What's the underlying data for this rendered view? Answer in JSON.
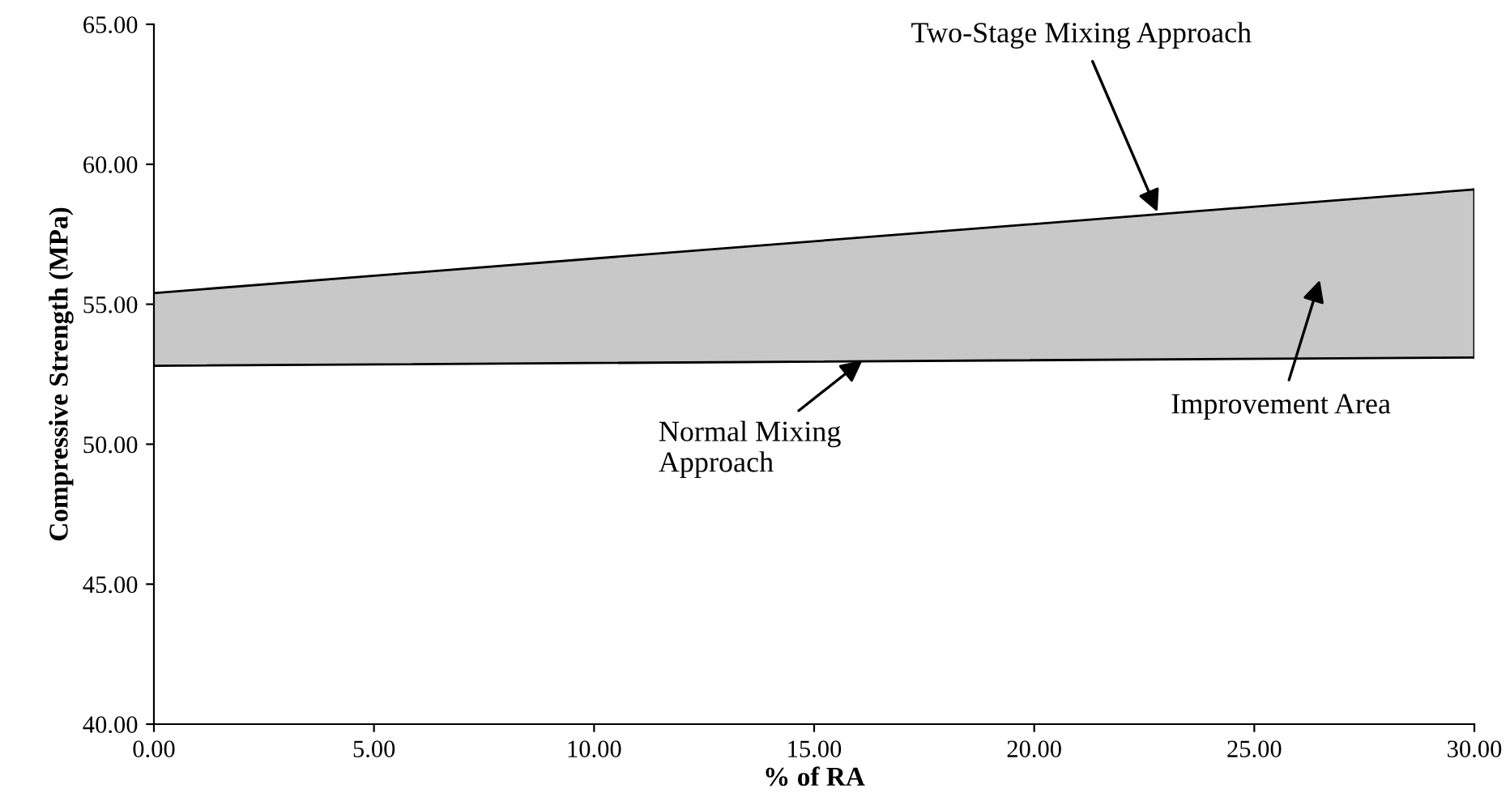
{
  "chart_data": {
    "type": "area",
    "xlabel": "% of RA",
    "ylabel": "Compressive Strength (MPa)",
    "x": [
      0,
      30
    ],
    "series": [
      {
        "type": "line",
        "color": "#000000",
        "values": [
          52.8,
          53.1
        ]
      },
      {
        "color": "#c8c8c8",
        "values": [
          55.4,
          59.1
        ]
      }
    ],
    "xlim": [
      0,
      30
    ],
    "ylim": [
      40,
      65
    ],
    "xticks": [
      {
        "value": 0,
        "label": "0.00"
      },
      {
        "value": 5,
        "label": "5.00"
      },
      {
        "value": 10,
        "label": "10.00"
      },
      {
        "value": 15,
        "label": "15.00"
      },
      {
        "value": 20,
        "label": "20.00"
      },
      {
        "value": 25,
        "label": "25.00"
      },
      {
        "value": 30,
        "label": "30.00"
      }
    ],
    "yticks": [
      {
        "value": 40,
        "label": "40.00"
      },
      {
        "value": 45,
        "label": "45.00"
      },
      {
        "value": 50,
        "label": "50.00"
      },
      {
        "value": 55,
        "label": "55.00"
      },
      {
        "value": 60,
        "label": "60.00"
      },
      {
        "value": 65,
        "label": "65.00"
      }
    ],
    "annotations": [
      {
        "text": "Two-Stage Mixing Approach",
        "x": 22.8,
        "y": 58.3
      },
      {
        "text": "Normal Mixing\nApproach",
        "x": 16.1,
        "y": 53.0
      },
      "Improvement Area"
    ]
  }
}
